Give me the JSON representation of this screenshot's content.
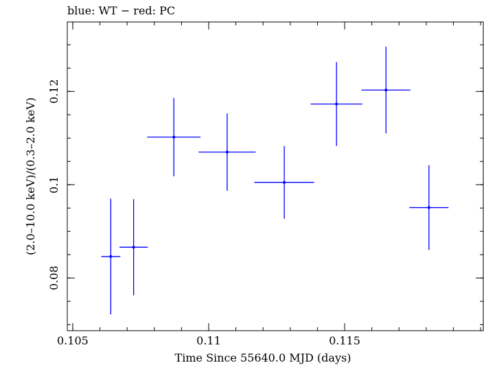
{
  "chart_data": {
    "type": "scatter",
    "title": "blue: WT − red: PC",
    "xlabel": "Time Since 55640.0 MJD (days)",
    "ylabel": "(2.0–10.0 keV)/(0.3–2.0 keV)",
    "xlim": [
      0.1048,
      0.1201
    ],
    "ylim": [
      0.0687,
      0.1349
    ],
    "x_ticks": [
      0.105,
      0.11,
      0.115
    ],
    "x_tick_labels": [
      "0.105",
      "0.11",
      "0.115"
    ],
    "y_ticks": [
      0.08,
      0.1,
      0.12
    ],
    "y_tick_labels": [
      "0.08",
      "0.1",
      "0.12"
    ],
    "grid": false,
    "colors": {
      "series": "#0000ff",
      "axes": "#000000"
    },
    "series": [
      {
        "points": [
          {
            "x": 0.1064,
            "xerr": 0.00035,
            "y": 0.0846,
            "yerr": 0.0124
          },
          {
            "x": 0.10724,
            "xerr": 0.00052,
            "y": 0.0866,
            "yerr": 0.0103
          },
          {
            "x": 0.10872,
            "xerr": 0.00098,
            "y": 0.1102,
            "yerr": 0.0084
          },
          {
            "x": 0.11068,
            "xerr": 0.00105,
            "y": 0.107,
            "yerr": 0.0083
          },
          {
            "x": 0.11278,
            "xerr": 0.0011,
            "y": 0.1005,
            "yerr": 0.0078
          },
          {
            "x": 0.1147,
            "xerr": 0.00095,
            "y": 0.1173,
            "yerr": 0.009
          },
          {
            "x": 0.11652,
            "xerr": 0.0009,
            "y": 0.1203,
            "yerr": 0.0093
          },
          {
            "x": 0.1181,
            "xerr": 0.00072,
            "y": 0.0951,
            "yerr": 0.0091
          }
        ]
      }
    ]
  }
}
